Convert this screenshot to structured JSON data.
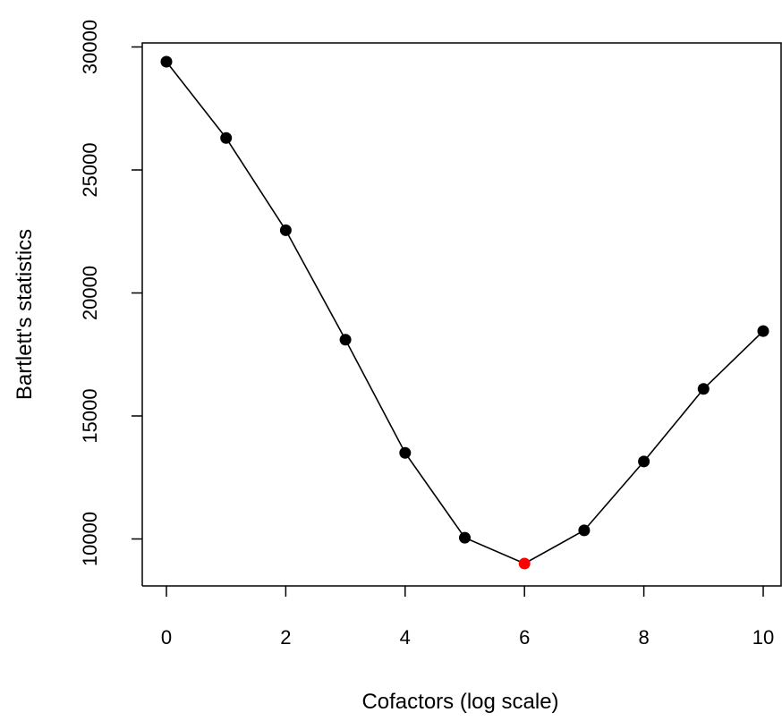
{
  "chart_data": {
    "type": "line",
    "title": "",
    "xlabel": "Cofactors (log scale)",
    "ylabel": "Bartlett's statistics",
    "xlim": [
      0,
      10
    ],
    "ylim": [
      9000,
      29400
    ],
    "x_ticks": [
      0,
      2,
      4,
      6,
      8,
      10
    ],
    "x_tick_labels": [
      "0",
      "2",
      "4",
      "6",
      "8",
      "10"
    ],
    "y_ticks": [
      10000,
      15000,
      20000,
      25000,
      30000
    ],
    "y_tick_labels": [
      "10000",
      "15000",
      "20000",
      "25000",
      "30000"
    ],
    "grid": false,
    "legend": "none",
    "series": [
      {
        "x": [
          0,
          1,
          2,
          3,
          4,
          5,
          6,
          7,
          8,
          9,
          10
        ],
        "values": [
          29400,
          26300,
          22550,
          18100,
          13500,
          10050,
          9000,
          10350,
          13150,
          16100,
          18450
        ],
        "color": "#000000",
        "highlight_index": 6,
        "highlight_color": "#ff0000"
      }
    ]
  }
}
